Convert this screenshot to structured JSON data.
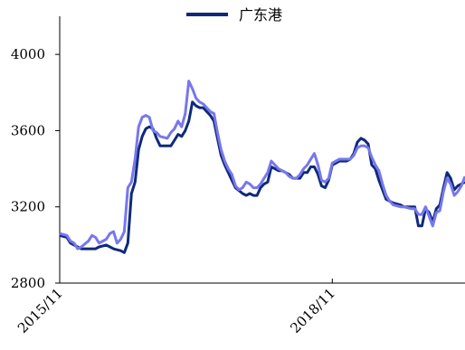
{
  "chart_data": {
    "type": "line",
    "title": "",
    "xlabel": "",
    "ylabel": "",
    "ylim": [
      2800,
      4200
    ],
    "yticks": [
      2800,
      3200,
      3600,
      4000
    ],
    "xticks": [
      "2015/11",
      "2018/11"
    ],
    "grid": false,
    "legend_position": "top-center",
    "legend": [
      {
        "name": "广东港",
        "color": "#0f2a7a"
      }
    ],
    "series": [
      {
        "name": "广东港",
        "color": "#0f2a7a",
        "values": [
          [
            0,
            3050
          ],
          [
            2,
            3040
          ],
          [
            3,
            3010
          ],
          [
            4,
            3000
          ],
          [
            5,
            2990
          ],
          [
            6,
            2980
          ],
          [
            8,
            2980
          ],
          [
            10,
            2980
          ],
          [
            11,
            2990
          ],
          [
            13,
            3000
          ],
          [
            14,
            2990
          ],
          [
            15,
            2980
          ],
          [
            17,
            2970
          ],
          [
            18,
            2960
          ],
          [
            19,
            3010
          ],
          [
            20,
            3270
          ],
          [
            21,
            3330
          ],
          [
            22,
            3500
          ],
          [
            23,
            3570
          ],
          [
            24,
            3610
          ],
          [
            25,
            3620
          ],
          [
            26,
            3610
          ],
          [
            27,
            3560
          ],
          [
            28,
            3520
          ],
          [
            30,
            3520
          ],
          [
            31,
            3520
          ],
          [
            32,
            3550
          ],
          [
            33,
            3580
          ],
          [
            34,
            3570
          ],
          [
            35,
            3600
          ],
          [
            36,
            3650
          ],
          [
            37,
            3750
          ],
          [
            38,
            3730
          ],
          [
            39,
            3720
          ],
          [
            40,
            3720
          ],
          [
            41,
            3700
          ],
          [
            42,
            3680
          ],
          [
            43,
            3650
          ],
          [
            44,
            3560
          ],
          [
            45,
            3470
          ],
          [
            46,
            3420
          ],
          [
            47,
            3380
          ],
          [
            48,
            3340
          ],
          [
            49,
            3300
          ],
          [
            51,
            3270
          ],
          [
            52,
            3260
          ],
          [
            53,
            3270
          ],
          [
            54,
            3260
          ],
          [
            55,
            3260
          ],
          [
            56,
            3300
          ],
          [
            57,
            3320
          ],
          [
            58,
            3330
          ],
          [
            59,
            3410
          ],
          [
            60,
            3400
          ],
          [
            61,
            3390
          ],
          [
            62,
            3390
          ],
          [
            63,
            3380
          ],
          [
            64,
            3370
          ],
          [
            65,
            3350
          ],
          [
            66,
            3350
          ],
          [
            67,
            3350
          ],
          [
            68,
            3380
          ],
          [
            69,
            3380
          ],
          [
            70,
            3410
          ],
          [
            71,
            3410
          ],
          [
            72,
            3370
          ],
          [
            73,
            3310
          ],
          [
            74,
            3300
          ],
          [
            75,
            3340
          ],
          [
            76,
            3420
          ],
          [
            77,
            3430
          ],
          [
            78,
            3440
          ],
          [
            80,
            3440
          ],
          [
            81,
            3450
          ],
          [
            82,
            3480
          ],
          [
            83,
            3540
          ],
          [
            84,
            3560
          ],
          [
            85,
            3550
          ],
          [
            86,
            3530
          ],
          [
            87,
            3420
          ],
          [
            88,
            3400
          ],
          [
            89,
            3340
          ],
          [
            90,
            3290
          ],
          [
            91,
            3240
          ],
          [
            92,
            3230
          ],
          [
            93,
            3220
          ],
          [
            95,
            3210
          ],
          [
            96,
            3200
          ],
          [
            98,
            3200
          ],
          [
            99,
            3200
          ],
          [
            100,
            3100
          ],
          [
            101,
            3100
          ],
          [
            102,
            3190
          ],
          [
            103,
            3170
          ],
          [
            104,
            3120
          ],
          [
            105,
            3190
          ],
          [
            106,
            3210
          ],
          [
            107,
            3300
          ],
          [
            108,
            3380
          ],
          [
            109,
            3350
          ],
          [
            110,
            3290
          ],
          [
            111,
            3310
          ],
          [
            112,
            3320
          ],
          [
            113,
            3330
          ]
        ]
      },
      {
        "name": "",
        "color": "#7777ee",
        "values": [
          [
            0,
            3060
          ],
          [
            2,
            3050
          ],
          [
            3,
            3020
          ],
          [
            4,
            3010
          ],
          [
            5,
            2980
          ],
          [
            6,
            2990
          ],
          [
            8,
            3020
          ],
          [
            9,
            3050
          ],
          [
            10,
            3040
          ],
          [
            11,
            3010
          ],
          [
            13,
            3030
          ],
          [
            14,
            3060
          ],
          [
            15,
            3070
          ],
          [
            16,
            3010
          ],
          [
            17,
            3030
          ],
          [
            18,
            3070
          ],
          [
            19,
            3300
          ],
          [
            20,
            3330
          ],
          [
            21,
            3450
          ],
          [
            22,
            3620
          ],
          [
            23,
            3670
          ],
          [
            24,
            3680
          ],
          [
            25,
            3670
          ],
          [
            26,
            3600
          ],
          [
            27,
            3590
          ],
          [
            28,
            3570
          ],
          [
            30,
            3560
          ],
          [
            31,
            3590
          ],
          [
            32,
            3610
          ],
          [
            33,
            3650
          ],
          [
            34,
            3620
          ],
          [
            35,
            3690
          ],
          [
            36,
            3860
          ],
          [
            37,
            3820
          ],
          [
            38,
            3770
          ],
          [
            39,
            3750
          ],
          [
            40,
            3740
          ],
          [
            41,
            3720
          ],
          [
            42,
            3700
          ],
          [
            43,
            3690
          ],
          [
            44,
            3590
          ],
          [
            45,
            3500
          ],
          [
            46,
            3440
          ],
          [
            47,
            3400
          ],
          [
            48,
            3370
          ],
          [
            49,
            3310
          ],
          [
            50,
            3290
          ],
          [
            51,
            3300
          ],
          [
            52,
            3330
          ],
          [
            53,
            3320
          ],
          [
            54,
            3300
          ],
          [
            55,
            3300
          ],
          [
            56,
            3320
          ],
          [
            57,
            3350
          ],
          [
            58,
            3380
          ],
          [
            59,
            3440
          ],
          [
            60,
            3420
          ],
          [
            61,
            3400
          ],
          [
            62,
            3390
          ],
          [
            63,
            3380
          ],
          [
            64,
            3360
          ],
          [
            65,
            3350
          ],
          [
            66,
            3350
          ],
          [
            67,
            3370
          ],
          [
            68,
            3400
          ],
          [
            69,
            3420
          ],
          [
            70,
            3450
          ],
          [
            71,
            3480
          ],
          [
            72,
            3420
          ],
          [
            73,
            3340
          ],
          [
            74,
            3330
          ],
          [
            75,
            3350
          ],
          [
            76,
            3430
          ],
          [
            77,
            3440
          ],
          [
            78,
            3450
          ],
          [
            80,
            3450
          ],
          [
            81,
            3450
          ],
          [
            82,
            3470
          ],
          [
            83,
            3510
          ],
          [
            84,
            3520
          ],
          [
            85,
            3520
          ],
          [
            86,
            3510
          ],
          [
            87,
            3460
          ],
          [
            88,
            3420
          ],
          [
            89,
            3390
          ],
          [
            90,
            3320
          ],
          [
            91,
            3260
          ],
          [
            92,
            3230
          ],
          [
            93,
            3210
          ],
          [
            95,
            3200
          ],
          [
            96,
            3200
          ],
          [
            98,
            3190
          ],
          [
            99,
            3190
          ],
          [
            100,
            3160
          ],
          [
            101,
            3160
          ],
          [
            102,
            3200
          ],
          [
            103,
            3150
          ],
          [
            104,
            3100
          ],
          [
            105,
            3170
          ],
          [
            106,
            3180
          ],
          [
            107,
            3280
          ],
          [
            108,
            3350
          ],
          [
            109,
            3320
          ],
          [
            110,
            3260
          ],
          [
            111,
            3280
          ],
          [
            112,
            3310
          ],
          [
            113,
            3360
          ]
        ]
      }
    ]
  }
}
